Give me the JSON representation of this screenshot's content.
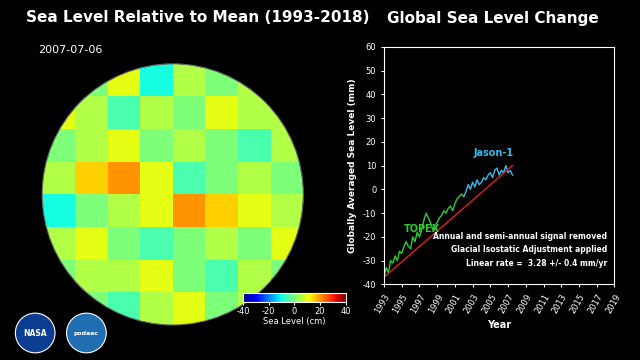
{
  "chart_data": [
    {
      "type": "heatmap",
      "title": "Sea Level Relative to Mean (1993-2018)",
      "subtitle": "2007-07-06",
      "cells": [
        [
          5,
          0,
          10,
          -10,
          5,
          0,
          5,
          0
        ],
        [
          10,
          5,
          -5,
          5,
          0,
          10,
          5,
          5
        ],
        [
          0,
          5,
          10,
          0,
          5,
          0,
          -5,
          5
        ],
        [
          5,
          15,
          20,
          10,
          -5,
          0,
          5,
          0
        ],
        [
          -10,
          0,
          5,
          10,
          20,
          15,
          10,
          5
        ],
        [
          5,
          10,
          0,
          -5,
          0,
          5,
          0,
          10
        ],
        [
          0,
          5,
          5,
          10,
          0,
          -5,
          5,
          0
        ],
        [
          5,
          0,
          -5,
          5,
          10,
          0,
          5,
          5
        ]
      ],
      "color_range": [
        -40,
        40
      ],
      "color_ticks": [
        -40,
        -20,
        0,
        20,
        40
      ],
      "color_label": "Sea Level (cm)",
      "tick_labels": false
    },
    {
      "type": "line",
      "title": "Global Sea Level Change",
      "x_label": "Year",
      "y_label": "Globally Averaged Sea Level (mm)",
      "xlim": [
        1993,
        2019
      ],
      "xticks": [
        1993,
        1995,
        1997,
        1999,
        2001,
        2003,
        2005,
        2007,
        2009,
        2011,
        2013,
        2015,
        2017,
        2019
      ],
      "ylim": [
        -40,
        60
      ],
      "yticks": [
        -40,
        -30,
        -20,
        -10,
        0,
        10,
        20,
        30,
        40,
        50,
        60
      ],
      "grid": false,
      "series": [
        {
          "name": "TOPEX",
          "color": "#2ecc2e",
          "x": [
            1993.0,
            1993.25,
            1993.5,
            1993.75,
            1994.0,
            1994.25,
            1994.5,
            1994.75,
            1995.0,
            1995.25,
            1995.5,
            1995.75,
            1996.0,
            1996.25,
            1996.5,
            1996.75,
            1997.0,
            1997.25,
            1997.5,
            1997.75,
            1998.0,
            1998.25,
            1998.5,
            1998.75,
            1999.0,
            1999.25,
            1999.5,
            1999.75,
            2000.0,
            2000.25,
            2000.5,
            2000.75,
            2001.0,
            2001.25,
            2001.5,
            2001.75,
            2002.0
          ],
          "values": [
            -37,
            -33,
            -35,
            -30,
            -31,
            -28,
            -30,
            -26,
            -27,
            -24,
            -22,
            -24,
            -25,
            -20,
            -22,
            -18,
            -20,
            -17,
            -13,
            -10,
            -12,
            -14,
            -17,
            -15,
            -14,
            -12,
            -11,
            -9,
            -10,
            -8,
            -7,
            -9,
            -6,
            -4,
            -3,
            -2,
            -3
          ]
        },
        {
          "name": "Jason-1",
          "color": "#33bbee",
          "x": [
            2002.0,
            2002.25,
            2002.5,
            2002.75,
            2003.0,
            2003.25,
            2003.5,
            2003.75,
            2004.0,
            2004.25,
            2004.5,
            2004.75,
            2005.0,
            2005.25,
            2005.5,
            2005.75,
            2006.0,
            2006.25,
            2006.5,
            2006.75,
            2007.0,
            2007.25,
            2007.5
          ],
          "values": [
            -3,
            -1,
            2,
            0,
            3,
            1,
            4,
            2,
            3,
            5,
            4,
            6,
            7,
            5,
            8,
            9,
            6,
            8,
            7,
            10,
            7,
            8,
            6
          ]
        },
        {
          "color": "#e02020",
          "x": [
            1993,
            2007.5
          ],
          "values": [
            -37,
            10
          ]
        }
      ],
      "annotations": [
        "Annual and semi-annual signal removed",
        "Glacial Isostatic Adjustment applied",
        "Linear rate =  3.28 +/- 0.4 mm/yr"
      ]
    }
  ],
  "logos": [
    "NASA",
    "podaac"
  ]
}
